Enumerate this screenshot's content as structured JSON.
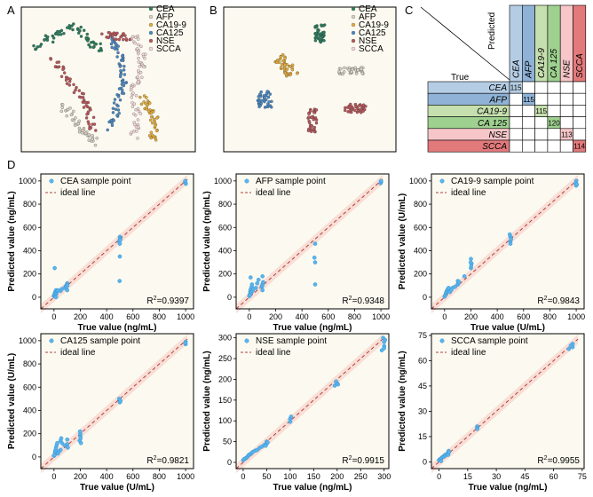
{
  "panel_labels": {
    "a": "A",
    "b": "B",
    "c": "C",
    "d": "D"
  },
  "colors": {
    "plot_bg": "#fcfaf0",
    "point": "#5ab4ec",
    "point_edge": "#2d8fd0",
    "ideal_line": "#b04040",
    "band": "#f6c6c0",
    "markers": {
      "CEA": "#2a7d5e",
      "AFP": "#d8d2c6",
      "CA19-9": "#e3ac3c",
      "CA125": "#4a88c4",
      "NSE": "#b8575c",
      "SCCA": "#f2d8d8"
    }
  },
  "markers": {
    "legend": [
      "CEA",
      "AFP",
      "CA19-9",
      "CA125",
      "NSE",
      "SCCA"
    ]
  },
  "confusion": {
    "predicted_label": "Predicted",
    "true_label": "True",
    "classes": [
      "CEA",
      "AFP",
      "CA19-9",
      "CA 125",
      "NSE",
      "SCCA"
    ],
    "header_colors": [
      "#b5cde4",
      "#8fb2d6",
      "#c5dfae",
      "#9ed08f",
      "#f6c6c8",
      "#e2797b"
    ],
    "diagonal": [
      115,
      115,
      115,
      120,
      113,
      114
    ]
  },
  "chart_data": [
    {
      "type": "scatter",
      "legend": [
        "CEA sample point",
        "ideal line"
      ],
      "xlabel": "True value (ng/mL)",
      "ylabel": "Predicted value (ng/mL)",
      "xlim": [
        -100,
        1060
      ],
      "ylim": [
        -100,
        1060
      ],
      "xticks": [
        0,
        200,
        400,
        600,
        800,
        1000
      ],
      "yticks": [
        0,
        200,
        400,
        600,
        800,
        1000
      ],
      "r2_label": "R",
      "r2_sup": "2",
      "r2_value": "=0.9397",
      "points": [
        [
          0,
          10
        ],
        [
          2,
          18
        ],
        [
          5,
          25
        ],
        [
          8,
          40
        ],
        [
          10,
          35
        ],
        [
          12,
          50
        ],
        [
          15,
          60
        ],
        [
          18,
          30
        ],
        [
          20,
          45
        ],
        [
          25,
          55
        ],
        [
          30,
          60
        ],
        [
          5,
          250
        ],
        [
          10,
          5
        ],
        [
          15,
          0
        ],
        [
          50,
          55
        ],
        [
          60,
          70
        ],
        [
          80,
          80
        ],
        [
          90,
          95
        ],
        [
          100,
          60
        ],
        [
          100,
          120
        ],
        [
          98,
          105
        ],
        [
          95,
          90
        ],
        [
          102,
          100
        ],
        [
          500,
          520
        ],
        [
          505,
          505
        ],
        [
          495,
          480
        ],
        [
          500,
          460
        ],
        [
          500,
          350
        ],
        [
          498,
          140
        ],
        [
          500,
          500
        ],
        [
          502,
          490
        ],
        [
          1000,
          980
        ],
        [
          995,
          990
        ],
        [
          1002,
          975
        ],
        [
          998,
          1000
        ]
      ]
    },
    {
      "type": "scatter",
      "legend": [
        "AFP sample point",
        "ideal line"
      ],
      "xlabel": "True value (ng/mL)",
      "ylabel": "Predicted value (ng/mL)",
      "xlim": [
        -100,
        1060
      ],
      "ylim": [
        -100,
        1060
      ],
      "xticks": [
        0,
        200,
        400,
        600,
        800,
        1000
      ],
      "yticks": [
        0,
        200,
        400,
        600,
        800,
        1000
      ],
      "r2_label": "R",
      "r2_sup": "2",
      "r2_value": "=0.9348",
      "points": [
        [
          0,
          10
        ],
        [
          5,
          30
        ],
        [
          8,
          50
        ],
        [
          10,
          60
        ],
        [
          12,
          70
        ],
        [
          15,
          40
        ],
        [
          18,
          90
        ],
        [
          20,
          110
        ],
        [
          25,
          55
        ],
        [
          30,
          70
        ],
        [
          10,
          170
        ],
        [
          5,
          20
        ],
        [
          50,
          80
        ],
        [
          60,
          120
        ],
        [
          70,
          150
        ],
        [
          95,
          90
        ],
        [
          100,
          180
        ],
        [
          100,
          60
        ],
        [
          98,
          100
        ],
        [
          102,
          115
        ],
        [
          105,
          130
        ],
        [
          500,
          460
        ],
        [
          495,
          340
        ],
        [
          500,
          300
        ],
        [
          500,
          110
        ],
        [
          1000,
          990
        ],
        [
          998,
          980
        ],
        [
          1002,
          995
        ],
        [
          1000,
          1000
        ]
      ]
    },
    {
      "type": "scatter",
      "legend": [
        "CA19-9 sample point",
        "ideal line"
      ],
      "xlabel": "True value (U/mL)",
      "ylabel": "Predicted value (U/mL)",
      "xlim": [
        -100,
        1060
      ],
      "ylim": [
        -100,
        1060
      ],
      "xticks": [
        0,
        200,
        400,
        600,
        800,
        1000
      ],
      "yticks": [
        0,
        200,
        400,
        600,
        800,
        1000
      ],
      "r2_label": "R",
      "r2_sup": "2",
      "r2_value": "=0.9843",
      "points": [
        [
          0,
          5
        ],
        [
          5,
          15
        ],
        [
          10,
          30
        ],
        [
          12,
          40
        ],
        [
          15,
          50
        ],
        [
          20,
          60
        ],
        [
          25,
          70
        ],
        [
          30,
          80
        ],
        [
          40,
          45
        ],
        [
          50,
          60
        ],
        [
          60,
          80
        ],
        [
          80,
          90
        ],
        [
          100,
          110
        ],
        [
          100,
          140
        ],
        [
          105,
          120
        ],
        [
          110,
          130
        ],
        [
          150,
          180
        ],
        [
          200,
          250
        ],
        [
          200,
          330
        ],
        [
          205,
          290
        ],
        [
          198,
          300
        ],
        [
          202,
          270
        ],
        [
          500,
          480
        ],
        [
          500,
          520
        ],
        [
          505,
          500
        ],
        [
          495,
          540
        ],
        [
          500,
          460
        ],
        [
          1000,
          960
        ],
        [
          1000,
          1000
        ],
        [
          995,
          980
        ],
        [
          1005,
          970
        ]
      ]
    },
    {
      "type": "scatter",
      "legend": [
        "CA125 sample point",
        "ideal line"
      ],
      "xlabel": "True value (U/mL)",
      "ylabel": "Predicted value (U/mL)",
      "xlim": [
        -100,
        1060
      ],
      "ylim": [
        -100,
        1060
      ],
      "xticks": [
        0,
        200,
        400,
        600,
        800,
        1000
      ],
      "yticks": [
        0,
        200,
        400,
        600,
        800,
        1000
      ],
      "r2_label": "R",
      "r2_sup": "2",
      "r2_value": "=0.9821",
      "points": [
        [
          0,
          10
        ],
        [
          5,
          20
        ],
        [
          8,
          40
        ],
        [
          10,
          50
        ],
        [
          12,
          60
        ],
        [
          15,
          80
        ],
        [
          20,
          100
        ],
        [
          25,
          120
        ],
        [
          30,
          30
        ],
        [
          40,
          50
        ],
        [
          50,
          60
        ],
        [
          50,
          140
        ],
        [
          55,
          160
        ],
        [
          60,
          120
        ],
        [
          80,
          100
        ],
        [
          100,
          110
        ],
        [
          100,
          150
        ],
        [
          105,
          80
        ],
        [
          195,
          140
        ],
        [
          200,
          180
        ],
        [
          200,
          200
        ],
        [
          202,
          160
        ],
        [
          198,
          220
        ],
        [
          205,
          120
        ],
        [
          500,
          490
        ],
        [
          500,
          470
        ],
        [
          495,
          500
        ],
        [
          505,
          480
        ],
        [
          1000,
          970
        ],
        [
          1000,
          990
        ],
        [
          998,
          980
        ]
      ]
    },
    {
      "type": "scatter",
      "legend": [
        "NSE sample point",
        "ideal line"
      ],
      "xlabel": "True value (ng/mL)",
      "ylabel": "Predicted value (ng/mL)",
      "xlim": [
        -15,
        310
      ],
      "ylim": [
        -15,
        310
      ],
      "xticks": [
        0,
        50,
        100,
        150,
        200,
        250,
        300
      ],
      "yticks": [
        0,
        50,
        100,
        150,
        200,
        250,
        300
      ],
      "r2_label": "R",
      "r2_sup": "2",
      "r2_value": "=0.9915",
      "points": [
        [
          0,
          5
        ],
        [
          2,
          8
        ],
        [
          5,
          10
        ],
        [
          8,
          12
        ],
        [
          10,
          15
        ],
        [
          12,
          18
        ],
        [
          15,
          20
        ],
        [
          18,
          22
        ],
        [
          20,
          25
        ],
        [
          25,
          28
        ],
        [
          30,
          30
        ],
        [
          35,
          35
        ],
        [
          40,
          38
        ],
        [
          45,
          42
        ],
        [
          50,
          45
        ],
        [
          50,
          50
        ],
        [
          48,
          40
        ],
        [
          52,
          48
        ],
        [
          100,
          105
        ],
        [
          100,
          98
        ],
        [
          102,
          110
        ],
        [
          195,
          185
        ],
        [
          200,
          190
        ],
        [
          198,
          195
        ],
        [
          202,
          188
        ],
        [
          295,
          270
        ],
        [
          300,
          280
        ],
        [
          300,
          290
        ],
        [
          298,
          300
        ],
        [
          302,
          295
        ],
        [
          300,
          275
        ]
      ]
    },
    {
      "type": "scatter",
      "legend": [
        "SCCA sample point",
        "ideal line"
      ],
      "xlabel": "True value (ng/mL)",
      "ylabel": "Predicted value (ng/mL)",
      "xlim": [
        -4,
        76
      ],
      "ylim": [
        -4,
        76
      ],
      "xticks": [
        0,
        15,
        30,
        45,
        60,
        75
      ],
      "yticks": [
        0,
        15,
        30,
        45,
        60,
        75
      ],
      "r2_label": "R",
      "r2_sup": "2",
      "r2_value": "=0.9955",
      "points": [
        [
          0,
          1
        ],
        [
          0.5,
          1.5
        ],
        [
          1,
          2
        ],
        [
          1.5,
          2.5
        ],
        [
          2,
          3
        ],
        [
          2.5,
          3
        ],
        [
          3,
          4
        ],
        [
          3.5,
          3.8
        ],
        [
          4,
          4.5
        ],
        [
          4.5,
          5
        ],
        [
          5,
          5.5
        ],
        [
          5,
          6.5
        ],
        [
          4.8,
          4.2
        ],
        [
          5.2,
          6
        ],
        [
          1,
          0.5
        ],
        [
          20,
          21
        ],
        [
          20,
          20
        ],
        [
          20,
          19.5
        ],
        [
          68,
          67
        ],
        [
          70,
          68
        ],
        [
          70,
          70
        ],
        [
          69,
          69
        ]
      ]
    }
  ]
}
